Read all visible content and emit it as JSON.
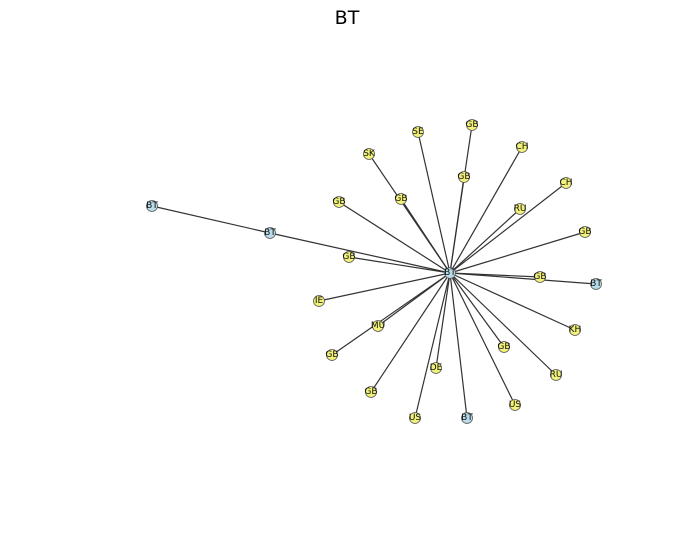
{
  "title": "BT",
  "colors": {
    "country_node": "#f2f27a",
    "bt_node": "#b8dcea",
    "edge": "#333333"
  },
  "nodes": [
    {
      "id": "center",
      "label": "BT",
      "kind": "bt"
    },
    {
      "id": "n_bt_far",
      "label": "BT",
      "kind": "bt"
    },
    {
      "id": "n_bt_mid",
      "label": "BT",
      "kind": "bt"
    },
    {
      "id": "n_bt_right",
      "label": "BT",
      "kind": "bt"
    },
    {
      "id": "n_bt_bottom",
      "label": "BT",
      "kind": "bt"
    },
    {
      "id": "n_se",
      "label": "SE",
      "kind": "country"
    },
    {
      "id": "n_gb_top",
      "label": "GB",
      "kind": "country"
    },
    {
      "id": "n_ch_1",
      "label": "CH",
      "kind": "country"
    },
    {
      "id": "n_sk",
      "label": "SK",
      "kind": "country"
    },
    {
      "id": "n_gb_2",
      "label": "GB",
      "kind": "country"
    },
    {
      "id": "n_ch_2",
      "label": "CH",
      "kind": "country"
    },
    {
      "id": "n_gb_3",
      "label": "GB",
      "kind": "country"
    },
    {
      "id": "n_gb_4",
      "label": "GB",
      "kind": "country"
    },
    {
      "id": "n_ru_1",
      "label": "RU",
      "kind": "country"
    },
    {
      "id": "n_gb_5",
      "label": "GB",
      "kind": "country"
    },
    {
      "id": "n_gb_6",
      "label": "GB",
      "kind": "country"
    },
    {
      "id": "n_gb_7",
      "label": "GB",
      "kind": "country"
    },
    {
      "id": "n_ie",
      "label": "IE",
      "kind": "country"
    },
    {
      "id": "n_mu",
      "label": "MU",
      "kind": "country"
    },
    {
      "id": "n_kh",
      "label": "KH",
      "kind": "country"
    },
    {
      "id": "n_gb_8",
      "label": "GB",
      "kind": "country"
    },
    {
      "id": "n_gb_9",
      "label": "GB",
      "kind": "country"
    },
    {
      "id": "n_de",
      "label": "DE",
      "kind": "country"
    },
    {
      "id": "n_ru_2",
      "label": "RU",
      "kind": "country"
    },
    {
      "id": "n_gb_10",
      "label": "GB",
      "kind": "country"
    },
    {
      "id": "n_us_1",
      "label": "US",
      "kind": "country"
    },
    {
      "id": "n_us_2",
      "label": "US",
      "kind": "country"
    }
  ],
  "edges": [
    [
      "n_bt_far",
      "n_bt_mid"
    ],
    [
      "n_bt_mid",
      "center"
    ],
    [
      "n_se",
      "center"
    ],
    [
      "n_gb_top",
      "center"
    ],
    [
      "n_ch_1",
      "center"
    ],
    [
      "n_sk",
      "center"
    ],
    [
      "n_gb_2",
      "center"
    ],
    [
      "n_ch_2",
      "center"
    ],
    [
      "n_gb_3",
      "center"
    ],
    [
      "n_gb_4",
      "center"
    ],
    [
      "n_ru_1",
      "center"
    ],
    [
      "n_gb_5",
      "center"
    ],
    [
      "n_gb_6",
      "center"
    ],
    [
      "n_gb_7",
      "center"
    ],
    [
      "n_bt_right",
      "center"
    ],
    [
      "n_ie",
      "center"
    ],
    [
      "n_mu",
      "center"
    ],
    [
      "n_kh",
      "center"
    ],
    [
      "n_gb_8",
      "center"
    ],
    [
      "n_gb_9",
      "center"
    ],
    [
      "n_de",
      "center"
    ],
    [
      "n_ru_2",
      "center"
    ],
    [
      "n_gb_10",
      "center"
    ],
    [
      "n_us_1",
      "center"
    ],
    [
      "n_bt_bottom",
      "center"
    ],
    [
      "n_us_2",
      "center"
    ]
  ]
}
